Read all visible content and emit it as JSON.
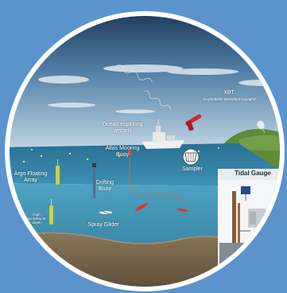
{
  "labels": {
    "xbt_title": "XBT",
    "xbt_subtitle": "(Expendable Bathythermographs)",
    "ocean_vessels": "Ocean exploring vessels",
    "atlas_buoy": "Atlas Mooring Buoy",
    "sampler": "Sampler",
    "argo": "Argo Floating Array",
    "drifting_buoy": "Drifting Buoy",
    "spray_glider": "Spray Glider",
    "tidal_gauge": "Tidal Gauge",
    "high_sampling": "High sampling at depth"
  },
  "colors": {
    "frame": "#5b93cd",
    "sky_top": "#16304f",
    "sky_bottom": "#b9d1e2",
    "sea_surface": "#2f7fa6",
    "water": "#3c8fb4",
    "seabed": "#7b6a52",
    "float": "#c9d63a"
  }
}
